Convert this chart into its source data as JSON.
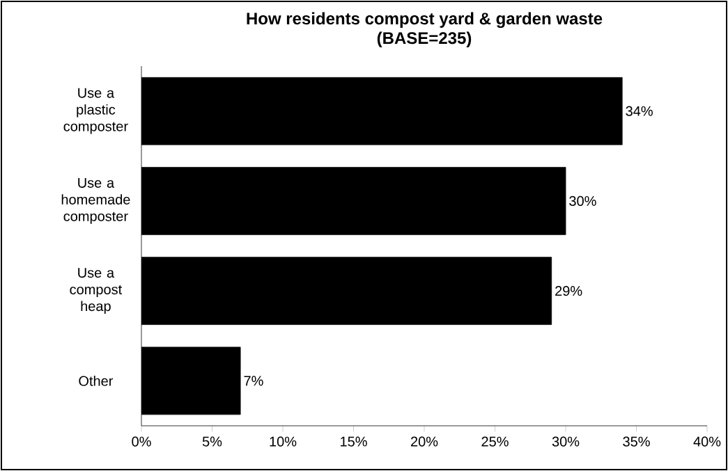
{
  "chart_data": {
    "type": "bar",
    "orientation": "horizontal",
    "title": "How residents compost yard & garden waste",
    "subtitle": "(BASE=235)",
    "categories": [
      "Use a plastic composter",
      "Use a homemade composter",
      "Use a compost heap",
      "Other"
    ],
    "values": [
      34,
      30,
      29,
      7
    ],
    "value_labels": [
      "34%",
      "30%",
      "29%",
      "7%"
    ],
    "color": "#000000",
    "xlim": [
      0,
      40
    ],
    "xticks": [
      {
        "value": 0,
        "label": "0%"
      },
      {
        "value": 5,
        "label": "5%"
      },
      {
        "value": 10,
        "label": "10%"
      },
      {
        "value": 15,
        "label": "15%"
      },
      {
        "value": 20,
        "label": "20%"
      },
      {
        "value": 25,
        "label": "25%"
      },
      {
        "value": 30,
        "label": "30%"
      },
      {
        "value": 35,
        "label": "35%"
      },
      {
        "value": 40,
        "label": "40%"
      }
    ]
  }
}
